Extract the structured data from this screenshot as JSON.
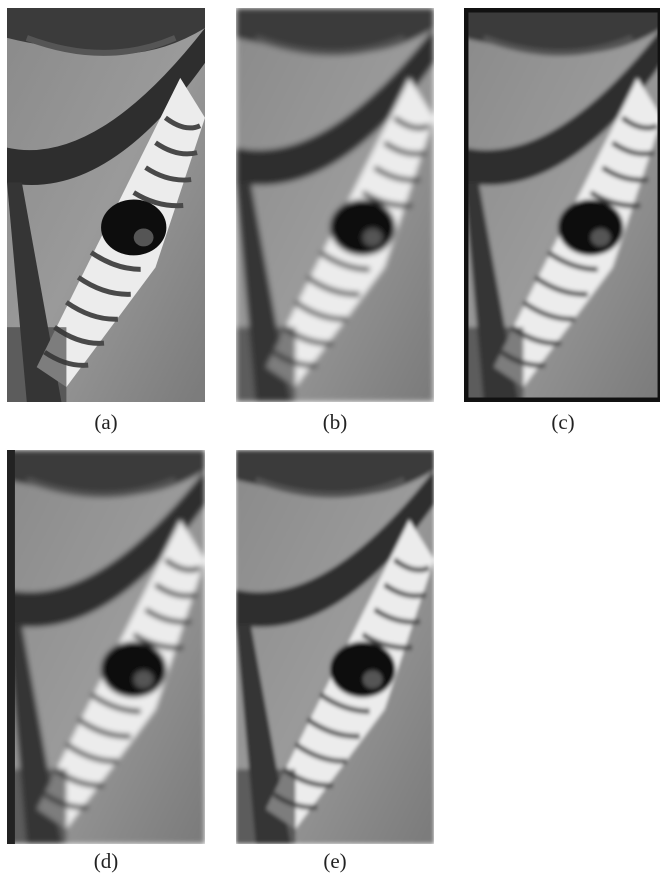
{
  "panels": [
    {
      "caption": "(a)"
    },
    {
      "caption": "(b)"
    },
    {
      "caption": "(c)"
    },
    {
      "caption": "(d)"
    },
    {
      "caption": "(e)"
    }
  ]
}
